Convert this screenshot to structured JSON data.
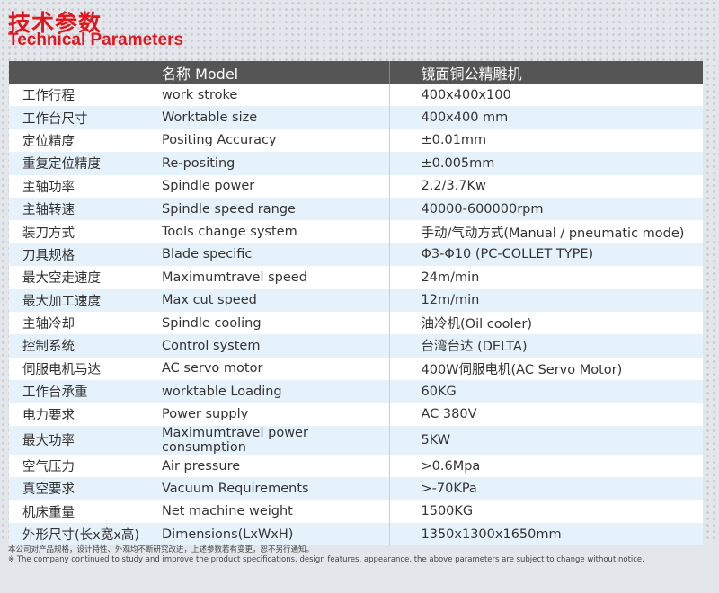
{
  "title_cn": "技术参数",
  "title_en": "Technical Parameters",
  "header": {
    "col2": "名称 Model",
    "col3": "镜面铜公精雕机"
  },
  "rows": [
    [
      "工作行程",
      "work stroke",
      "400x400x100"
    ],
    [
      "工作台尺寸",
      "Worktable size",
      "400x400 mm"
    ],
    [
      "定位精度",
      "Positing Accuracy",
      "±0.01mm"
    ],
    [
      "重复定位精度",
      "Re-positing",
      "±0.005mm"
    ],
    [
      "主轴功率",
      "Spindle power",
      "2.2/3.7Kw"
    ],
    [
      "主轴转速",
      "Spindle speed range",
      "40000-600000rpm"
    ],
    [
      "装刀方式",
      "Tools change system",
      "手动/气动方式(Manual / pneumatic mode)"
    ],
    [
      "刀具规格",
      "Blade specific",
      "Φ3-Φ10 (PC-COLLET TYPE)"
    ],
    [
      "最大空走速度",
      "Maximumtravel speed",
      "24m/min"
    ],
    [
      "最大加工速度",
      "Max cut speed",
      "12m/min"
    ],
    [
      "主轴冷却",
      "Spindle cooling",
      "油冷机(Oil cooler)"
    ],
    [
      "控制系统",
      "Control system",
      "台湾台达 (DELTA)"
    ],
    [
      "伺服电机马达",
      "AC servo motor",
      "400W伺服电机(AC Servo Motor)"
    ],
    [
      "工作台承重",
      "worktable Loading",
      "60KG"
    ],
    [
      "电力要求",
      "Power supply",
      "AC 380V"
    ],
    [
      "最大功率",
      "Maximumtravel power consumption",
      "5KW"
    ],
    [
      "空气压力",
      "Air pressure",
      ">0.6Mpa"
    ],
    [
      "真空要求",
      "Vacuum Requirements",
      ">-70KPa"
    ],
    [
      "机床重量",
      "Net machine weight",
      "1500KG"
    ],
    [
      "外形尺寸(长x宽x高)",
      "Dimensions(LxWxH)",
      "1350x1300x1650mm"
    ]
  ],
  "notes": {
    "cn": "本公司对产品规格，设计特性、外观均不断研究改进，上述参数若有变更，恕不另行通知。",
    "en": "※ The company continued to study and improve the product specifications, design features, appearance, the above parameters are subject to change without notice."
  },
  "colors": {
    "title": "#e3141b",
    "header_bg": "#555555",
    "row_alt": "#e6f2fb"
  }
}
